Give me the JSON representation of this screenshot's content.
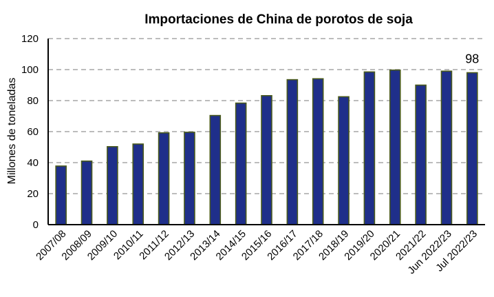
{
  "chart_data": {
    "type": "bar",
    "title": "Importaciones de China de porotos de soja",
    "xlabel": "",
    "ylabel": "Millones de toneladas",
    "ylim": [
      0,
      120
    ],
    "yticks": [
      0,
      20,
      40,
      60,
      80,
      100,
      120
    ],
    "grid": true,
    "categories": [
      "2007/08",
      "2008/09",
      "2009/10",
      "2010/11",
      "2011/12",
      "2012/13",
      "2013/14",
      "2014/15",
      "2015/16",
      "2016/17",
      "2017/18",
      "2018/19",
      "2019/20",
      "2020/21",
      "2021/22",
      "Jun 2022/23",
      "Jul 2022/23"
    ],
    "values": [
      37.8,
      41,
      50.3,
      52,
      59.2,
      59.6,
      70.4,
      78.4,
      83.2,
      93.5,
      94.1,
      82.5,
      98.5,
      99.7,
      90,
      99,
      98
    ],
    "data_labels": [
      {
        "index": 16,
        "text": "98"
      }
    ],
    "colors": {
      "bar": "#1f2f8a",
      "bar_edge": "#4a5a1c",
      "grid": "#a6a6a6"
    }
  }
}
